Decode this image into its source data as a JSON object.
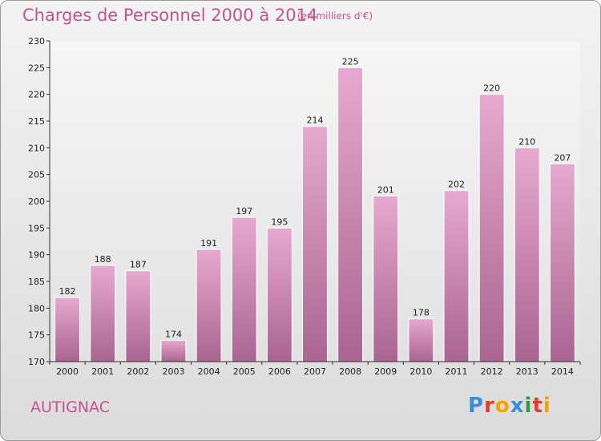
{
  "header": {
    "title": "Charges de Personnel 2000 à 2014",
    "subtitle": "(en milliers d'€)"
  },
  "footer": {
    "commune": "AUTIGNAC",
    "brand": "Proxiti"
  },
  "colors": {
    "accent": "#c0558f",
    "bar_top": "#e7a9cf",
    "bar_bottom": "#a96590",
    "brand": [
      "#3c8fd6",
      "#e63c2e",
      "#f5a300",
      "#3c8fd6",
      "#2f9e3b",
      "#e63c2e",
      "#f5a300"
    ]
  },
  "chart_data": {
    "type": "bar",
    "categories": [
      "2000",
      "2001",
      "2002",
      "2003",
      "2004",
      "2005",
      "2006",
      "2007",
      "2008",
      "2009",
      "2010",
      "2011",
      "2012",
      "2013",
      "2014"
    ],
    "values": [
      182,
      188,
      187,
      174,
      191,
      197,
      195,
      214,
      225,
      201,
      178,
      202,
      220,
      210,
      207
    ],
    "ylim": [
      170,
      230
    ],
    "yticks": [
      170,
      175,
      180,
      185,
      190,
      195,
      200,
      205,
      210,
      215,
      220,
      225,
      230
    ],
    "grid": false
  }
}
